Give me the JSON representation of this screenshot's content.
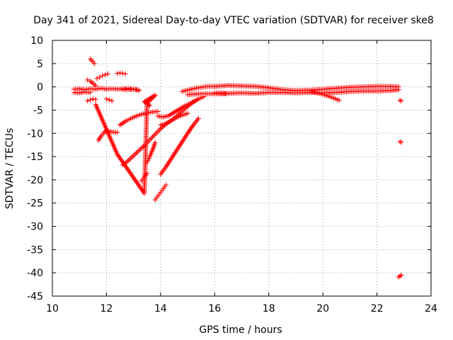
{
  "chart_data": {
    "type": "scatter",
    "title": "Day 341 of 2021, Sidereal Day-to-day VTEC variation (SDTVAR) for receiver ske8",
    "xlabel": "GPS time / hours",
    "ylabel": "SDTVAR / TECUs",
    "xlim": [
      10,
      24
    ],
    "ylim": [
      -45,
      10
    ],
    "xticks": [
      10,
      12,
      14,
      16,
      18,
      20,
      22,
      24
    ],
    "yticks": [
      10,
      5,
      0,
      -5,
      -10,
      -15,
      -20,
      -25,
      -30,
      -35,
      -40,
      -45
    ],
    "grid": true,
    "marker": "plus",
    "color": "#ff0000",
    "series": [
      {
        "name": "band-0",
        "x": [
          10.8,
          11.0,
          11.2,
          11.4,
          11.6,
          11.8,
          12.0,
          12.2,
          12.4,
          12.6,
          12.8,
          13.0,
          13.2
        ],
        "y": [
          -0.5,
          -0.4,
          -0.6,
          -0.4,
          -0.5,
          -0.3,
          -0.5,
          -0.4,
          -0.5,
          -0.4,
          -0.6,
          -0.5,
          -0.7
        ]
      },
      {
        "name": "band-1",
        "x": [
          10.8,
          11.0,
          11.2,
          11.4
        ],
        "y": [
          -1.2,
          -1.3,
          -1.1,
          -1.2
        ]
      },
      {
        "name": "cluster-a",
        "x": [
          11.3,
          11.4,
          11.5,
          11.6
        ],
        "y": [
          1.5,
          1.2,
          0.8,
          0.2
        ]
      },
      {
        "name": "cluster-b",
        "x": [
          11.4,
          11.45,
          11.5,
          11.55
        ],
        "y": [
          6.0,
          5.7,
          5.4,
          5.0
        ]
      },
      {
        "name": "cluster-c",
        "x": [
          11.65,
          11.75,
          11.85,
          11.95,
          12.05
        ],
        "y": [
          1.8,
          2.1,
          2.4,
          2.6,
          2.8
        ]
      },
      {
        "name": "cluster-d",
        "x": [
          12.4,
          12.5,
          12.6,
          12.7
        ],
        "y": [
          2.9,
          3.0,
          2.9,
          2.8
        ]
      },
      {
        "name": "cluster-e",
        "x": [
          11.3,
          11.4,
          11.5,
          11.6
        ],
        "y": [
          -3.0,
          -2.8,
          -2.6,
          -2.7
        ]
      },
      {
        "name": "cluster-f",
        "x": [
          12.0,
          12.1,
          12.2
        ],
        "y": [
          -2.6,
          -2.8,
          -3.0
        ]
      },
      {
        "name": "cluster-g",
        "x": [
          12.6,
          12.7,
          12.8,
          12.9,
          13.0,
          13.1,
          13.2
        ],
        "y": [
          -0.6,
          -0.4,
          -0.3,
          -0.4,
          -0.5,
          -0.6,
          -0.8
        ]
      },
      {
        "name": "arc-1",
        "x": [
          11.7,
          11.8,
          11.9,
          12.0,
          12.2,
          12.4
        ],
        "y": [
          -11.5,
          -10.6,
          -9.9,
          -9.4,
          -9.7,
          -9.8
        ]
      },
      {
        "name": "arc-2",
        "x": [
          12.5,
          12.7,
          12.9,
          13.1,
          13.3,
          13.5,
          13.7,
          13.9
        ],
        "y": [
          -8.2,
          -7.4,
          -6.8,
          -6.3,
          -5.9,
          -5.6,
          -5.4,
          -5.3
        ]
      },
      {
        "name": "arc-3",
        "x": [
          12.6,
          12.8,
          13.0,
          13.2,
          13.4,
          13.6,
          13.8,
          14.0,
          14.2,
          14.4,
          14.6,
          14.8,
          15.0
        ],
        "y": [
          -16.8,
          -15.9,
          -14.8,
          -13.7,
          -12.6,
          -11.4,
          -10.2,
          -9.0,
          -8.0,
          -7.2,
          -6.6,
          -6.1,
          -5.7
        ]
      },
      {
        "name": "arc-4",
        "x": [
          13.8,
          13.9,
          14.0,
          14.1,
          14.2
        ],
        "y": [
          -24.3,
          -23.5,
          -22.7,
          -21.9,
          -21.1
        ]
      },
      {
        "name": "arc-5",
        "x": [
          14.0,
          14.2,
          14.4,
          14.6,
          14.8,
          15.0,
          15.2,
          15.4
        ],
        "y": [
          -18.8,
          -17.2,
          -15.4,
          -13.6,
          -11.8,
          -10.0,
          -8.3,
          -6.8
        ]
      },
      {
        "name": "arc-6",
        "x": [
          13.5,
          13.6,
          13.7,
          13.8
        ],
        "y": [
          -16.2,
          -15.0,
          -13.6,
          -12.0
        ]
      },
      {
        "name": "arc-7",
        "x": [
          13.3,
          13.4,
          13.5
        ],
        "y": [
          -20.2,
          -19.4,
          -18.6
        ]
      },
      {
        "name": "arc-8",
        "x": [
          13.9,
          14.1,
          14.3,
          14.5,
          14.7,
          14.9,
          15.1,
          15.3
        ],
        "y": [
          -6.3,
          -6.5,
          -6.2,
          -5.5,
          -4.8,
          -4.1,
          -3.5,
          -3.0
        ]
      },
      {
        "name": "arc-9",
        "x": [
          14.0,
          14.2,
          14.4,
          14.6,
          14.8,
          15.0,
          15.2,
          15.4,
          15.6
        ],
        "y": [
          -8.2,
          -7.9,
          -7.2,
          -6.3,
          -5.2,
          -4.2,
          -3.3,
          -2.6,
          -2.1
        ]
      },
      {
        "name": "arc-10",
        "x": [
          14.8,
          15.0,
          15.2,
          15.4,
          15.6,
          15.8,
          16.0
        ],
        "y": [
          -1.0,
          -0.7,
          -0.4,
          -0.2,
          0.0,
          0.1,
          0.1
        ]
      },
      {
        "name": "arc-11",
        "x": [
          15.0,
          15.2,
          15.4,
          15.6,
          15.8,
          16.0,
          16.4
        ],
        "y": [
          -1.7,
          -1.6,
          -1.5,
          -1.5,
          -1.5,
          -1.5,
          -1.5
        ]
      },
      {
        "name": "main-band",
        "x": [
          16.0,
          16.5,
          17.0,
          17.5,
          18.0,
          18.5,
          19.0,
          19.5,
          20.0,
          20.5,
          21.0,
          21.5,
          22.0,
          22.5,
          22.8
        ],
        "y": [
          0.1,
          0.3,
          0.2,
          0.1,
          -0.2,
          -0.6,
          -0.8,
          -0.7,
          -0.5,
          -0.3,
          -0.1,
          0.0,
          0.1,
          0.1,
          0.0
        ]
      },
      {
        "name": "band-low",
        "x": [
          16.0,
          16.5,
          17.0,
          17.5,
          18.0,
          18.5,
          19.0,
          19.5,
          20.0,
          20.5,
          21.0,
          21.5,
          22.0,
          22.5,
          22.8
        ],
        "y": [
          -1.3,
          -1.4,
          -1.3,
          -1.4,
          -1.2,
          -1.2,
          -1.3,
          -1.2,
          -1.3,
          -1.2,
          -1.0,
          -0.9,
          -0.9,
          -0.8,
          -0.6
        ]
      },
      {
        "name": "tail",
        "x": [
          19.6,
          19.8,
          20.0,
          20.2,
          20.4,
          20.6
        ],
        "y": [
          -1.0,
          -1.3,
          -1.6,
          -2.0,
          -2.4,
          -2.9
        ]
      },
      {
        "name": "sparse",
        "x": [
          11.6,
          12.4,
          13.4,
          13.5,
          13.8,
          13.4,
          13.6
        ],
        "y": [
          -3.8,
          -14.5,
          -22.9,
          -3.5,
          -1.8,
          -3.2,
          -4.0
        ]
      },
      {
        "name": "late-1",
        "x": [
          22.85,
          22.9
        ],
        "y": [
          -2.9,
          -3.0
        ]
      },
      {
        "name": "late-2",
        "x": [
          22.85,
          22.9
        ],
        "y": [
          -11.8,
          -11.9
        ]
      },
      {
        "name": "late-3",
        "x": [
          22.8,
          22.85,
          22.9
        ],
        "y": [
          -40.9,
          -40.7,
          -40.5
        ]
      }
    ]
  }
}
